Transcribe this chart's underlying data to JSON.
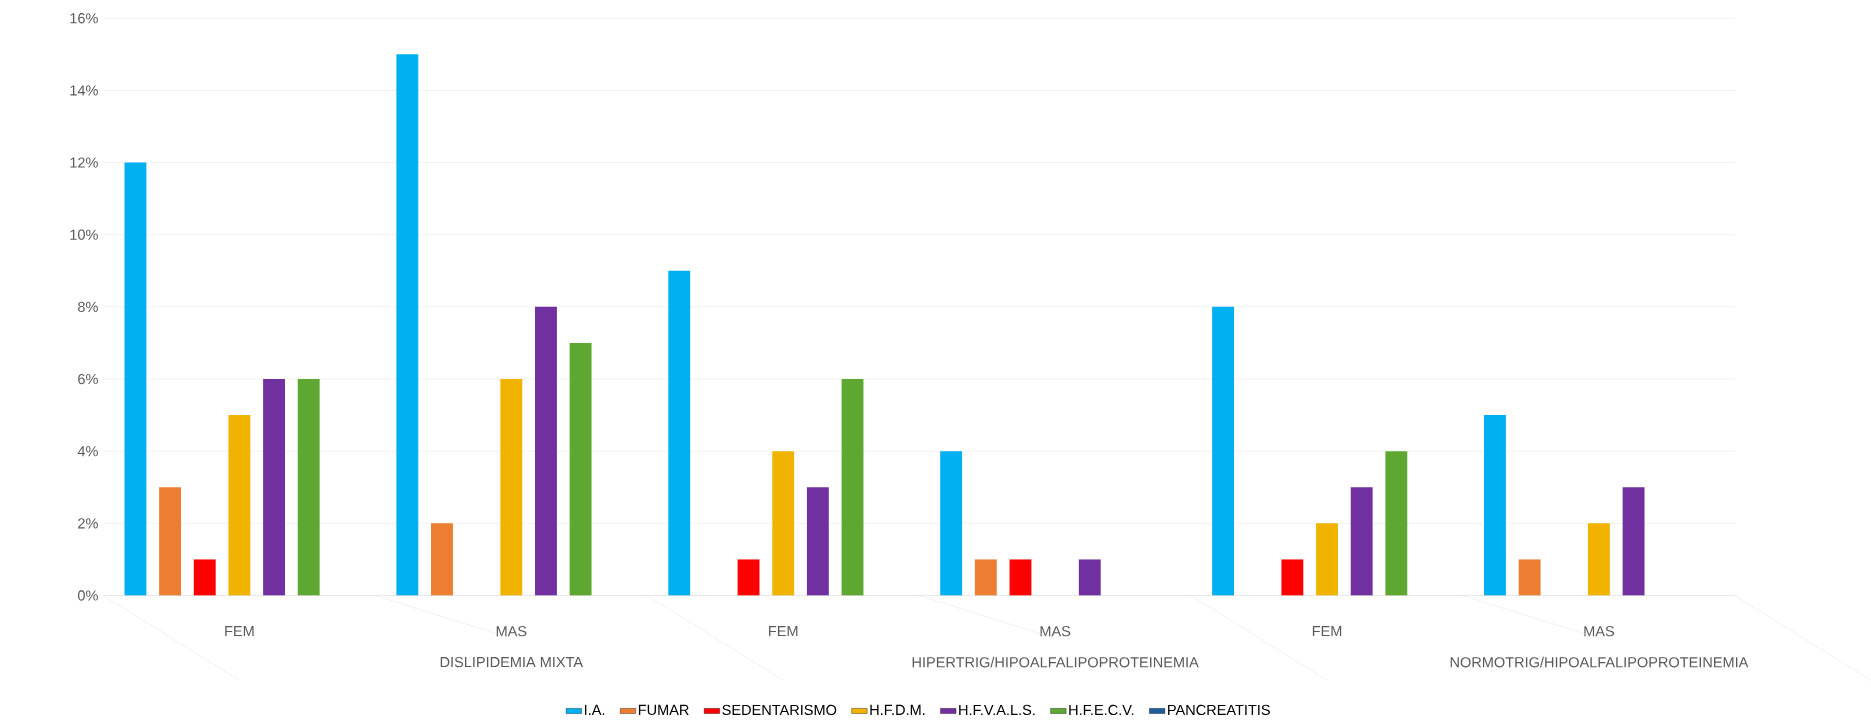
{
  "chart_data": {
    "type": "bar",
    "categories": [
      "FEM",
      "MAS",
      "FEM",
      "MAS",
      "FEM",
      "MAS"
    ],
    "annotations": [
      "DISLIPIDEMIA MIXTA",
      "HIPERTRIG/HIPOALFALIPOPROTEINEMIA",
      "NORMOTRIG/HIPOALFALIPOPROTEINEMIA"
    ],
    "series": [
      {
        "name": "I.A.",
        "color": "#00b0f0",
        "values": [
          12,
          15,
          9,
          4,
          8,
          5
        ]
      },
      {
        "name": "FUMAR",
        "color": "#ed7d31",
        "values": [
          3,
          2,
          0,
          1,
          0,
          1
        ]
      },
      {
        "name": "SEDENTARISMO",
        "color": "#ff0000",
        "values": [
          1,
          0,
          1,
          1,
          1,
          0
        ]
      },
      {
        "name": "H.F.D.M.",
        "color": "#f0b400",
        "values": [
          5,
          6,
          4,
          0,
          2,
          2
        ]
      },
      {
        "name": "H.F.V.A.L.S.",
        "color": "#7030a0",
        "values": [
          6,
          8,
          3,
          1,
          3,
          3
        ]
      },
      {
        "name": "H.F.E.C.V.",
        "color": "#5ea832",
        "values": [
          6,
          7,
          6,
          0,
          4,
          0
        ]
      },
      {
        "name": "PANCREATITIS",
        "color": "#1f5c99",
        "values": [
          0,
          0,
          0,
          0,
          0,
          0
        ]
      }
    ],
    "ylim": [
      0,
      16
    ],
    "yticks": [
      {
        "value": 0,
        "label": "0%"
      },
      {
        "value": 2,
        "label": "2%"
      },
      {
        "value": 4,
        "label": "4%"
      },
      {
        "value": 6,
        "label": "6%"
      },
      {
        "value": 8,
        "label": "8%"
      },
      {
        "value": 10,
        "label": "10%"
      },
      {
        "value": 12,
        "label": "12%"
      },
      {
        "value": 14,
        "label": "14%"
      },
      {
        "value": 16,
        "label": "16%"
      }
    ],
    "grid": "y",
    "legend": "bottom"
  }
}
